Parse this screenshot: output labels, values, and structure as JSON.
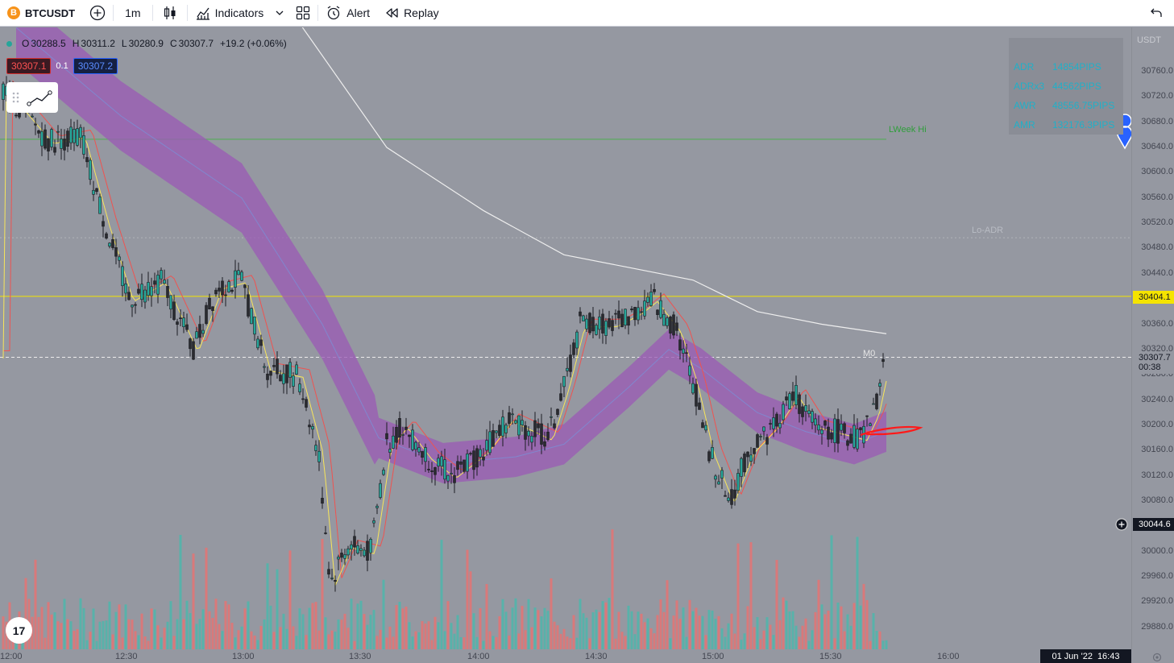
{
  "toolbar": {
    "coin_letter": "B",
    "symbol": "BTCUSDT",
    "interval": "1m",
    "indicators_label": "Indicators",
    "alert_label": "Alert",
    "replay_label": "Replay"
  },
  "legend": {
    "o_key": "O",
    "o_val": "30288.5",
    "h_key": "H",
    "h_val": "30311.2",
    "l_key": "L",
    "l_val": "30280.9",
    "c_key": "C",
    "c_val": "30307.7",
    "change": "+19.2 (+0.06%)"
  },
  "bidask": {
    "bid": "30307.1",
    "spread": "0.1",
    "ask": "30307.2"
  },
  "adr_table": [
    {
      "label": "ADR",
      "value": "14854PIPS"
    },
    {
      "label": "ADRx3",
      "value": "44562PIPS"
    },
    {
      "label": "AWR",
      "value": "48556.75PIPS"
    },
    {
      "label": "AMR",
      "value": "132176.3PIPS"
    }
  ],
  "annotations": {
    "week_hi": "LWeek Hi",
    "lo_adr": "Lo-ADR",
    "m0": "M0"
  },
  "price_axis": {
    "currency": "USDT",
    "ticks": [
      "30760.0",
      "30720.0",
      "30680.0",
      "30640.0",
      "30600.0",
      "30560.0",
      "30520.0",
      "30480.0",
      "30440.0",
      "30400.0",
      "30360.0",
      "30320.0",
      "30280.0",
      "30240.0",
      "30200.0",
      "30160.0",
      "30120.0",
      "30080.0",
      "30040.0",
      "30000.0",
      "29960.0",
      "29920.0",
      "29880.0"
    ],
    "yellow_line_price": "30404.1",
    "last_price": "30307.7",
    "countdown": "00:38",
    "crosshair_price": "30044.6"
  },
  "time_axis": {
    "ticks": [
      "12:00",
      "12:30",
      "13:00",
      "13:30",
      "14:00",
      "14:30",
      "15:00",
      "15:30",
      "16:00"
    ],
    "date": "01 Jun '22",
    "time": "16:43"
  },
  "colors": {
    "up": "#26a69a",
    "down": "#ef5350",
    "band": "#9b59b6",
    "yellow": "#f5e400",
    "ma_white": "#eeeeee",
    "week_hi": "#4caf50"
  },
  "logo_text": "17"
}
